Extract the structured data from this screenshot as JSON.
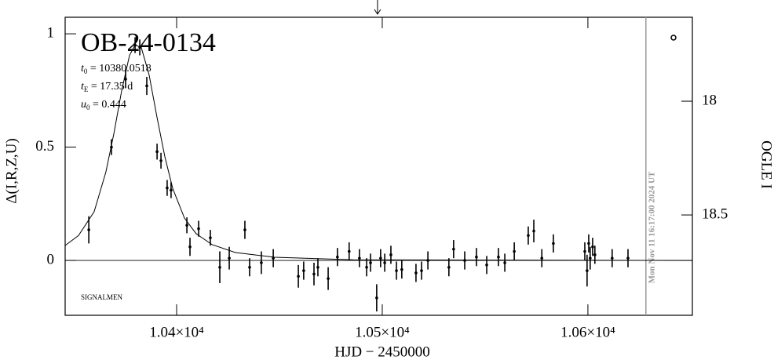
{
  "chart_data": {
    "type": "scatter",
    "title": "OB-24-0134",
    "parameters": [
      {
        "symbol": "t",
        "subscript": "0",
        "text": " = 10380.0518"
      },
      {
        "symbol": "t",
        "subscript": "E",
        "text": " = 17.35 d"
      },
      {
        "symbol": "u",
        "subscript": "0",
        "text": " = 0.444"
      }
    ],
    "credit": "SIGNALMEN",
    "xlabel": "HJD − 2450000",
    "ylabel": "Δ(I,R,Z,U)",
    "y2label": "OGLE I",
    "xlim": [
      10345.8,
      10650.8
    ],
    "xticks": [
      {
        "value": 10400,
        "label": "1.04×10⁴"
      },
      {
        "value": 10500,
        "label": "1.05×10⁴"
      },
      {
        "value": 10600,
        "label": "1.06×10⁴"
      }
    ],
    "ylim": [
      -0.242,
      1.073
    ],
    "yticks": [
      0,
      0.5,
      1
    ],
    "y2lim": [
      18.941,
      17.631
    ],
    "y2ticks": [
      18,
      18.5
    ],
    "baseline": 0,
    "vline": {
      "x": 10628.2,
      "label": "Mon Nov 11 16:17:00 2024 UT",
      "color": "#999999"
    },
    "arrow_x": 10497.7,
    "series": [
      {
        "type": "line",
        "color": "#000000",
        "x": [
          10345.8,
          10352.3,
          10359.9,
          10365.6,
          10369.5,
          10373.3,
          10377.1,
          10379.8,
          10382.8,
          10386.6,
          10390.5,
          10394.3,
          10398.1,
          10403.8,
          10409.5,
          10417.2,
          10428.6,
          10447.7,
          10485.9,
          10650.8
        ],
        "values": [
          0.066,
          0.11,
          0.215,
          0.39,
          0.56,
          0.75,
          0.905,
          0.95,
          0.94,
          0.82,
          0.63,
          0.457,
          0.318,
          0.187,
          0.118,
          0.07,
          0.035,
          0.014,
          0.003,
          0
        ]
      },
      {
        "type": "errorbar",
        "color": "#000000",
        "x": [
          10357.3,
          10368.3,
          10375.2,
          10379.8,
          10382.1,
          10385.5,
          10390.5,
          10392.4,
          10395.4,
          10397.3,
          10405.0,
          10406.5,
          10410.7,
          10416.4,
          10421.0,
          10425.6,
          10433.2,
          10435.5,
          10441.2,
          10447.0,
          10459.2,
          10461.8,
          10466.8,
          10468.7,
          10473.7,
          10478.2,
          10483.9,
          10488.9,
          10492.4,
          10494.3,
          10497.3,
          10499.2,
          10501.2,
          10504.2,
          10506.9,
          10509.5,
          10516.4,
          10519.1,
          10522.2,
          10532.4,
          10534.7,
          10540.1,
          10545.8,
          10550.8,
          10556.5,
          10559.6,
          10564.2,
          10571.0,
          10573.7,
          10577.6,
          10583.2,
          10598.5,
          10599.6,
          10600.4,
          10601.1,
          10602.3,
          10603.4,
          10611.8,
          10619.5
        ],
        "values": [
          0.135,
          0.5,
          0.8,
          0.95,
          0.94,
          0.77,
          0.48,
          0.44,
          0.32,
          0.31,
          0.155,
          0.06,
          0.14,
          0.1,
          -0.03,
          0.01,
          0.135,
          -0.03,
          -0.01,
          0.01,
          -0.07,
          -0.045,
          -0.06,
          -0.03,
          -0.08,
          0.015,
          0.04,
          0.01,
          -0.03,
          -0.01,
          -0.165,
          0.01,
          -0.01,
          0.025,
          -0.045,
          -0.04,
          -0.055,
          -0.045,
          0,
          -0.03,
          0.05,
          0,
          0.015,
          -0.02,
          0.015,
          -0.01,
          0.04,
          0.11,
          0.13,
          0.01,
          0.075,
          0.04,
          -0.045,
          0.075,
          0.01,
          0.06,
          0.025,
          0.01,
          0.01
        ],
        "errors": [
          0.06,
          0.035,
          0.04,
          0.035,
          0.035,
          0.04,
          0.035,
          0.035,
          0.035,
          0.035,
          0.035,
          0.04,
          0.035,
          0.035,
          0.07,
          0.05,
          0.04,
          0.04,
          0.05,
          0.04,
          0.05,
          0.04,
          0.05,
          0.04,
          0.05,
          0.04,
          0.04,
          0.04,
          0.04,
          0.04,
          0.06,
          0.04,
          0.04,
          0.04,
          0.04,
          0.04,
          0.04,
          0.04,
          0.04,
          0.04,
          0.04,
          0.04,
          0.04,
          0.04,
          0.04,
          0.04,
          0.04,
          0.04,
          0.05,
          0.04,
          0.04,
          0.04,
          0.07,
          0.04,
          0.05,
          0.04,
          0.04,
          0.04,
          0.04
        ]
      }
    ]
  }
}
